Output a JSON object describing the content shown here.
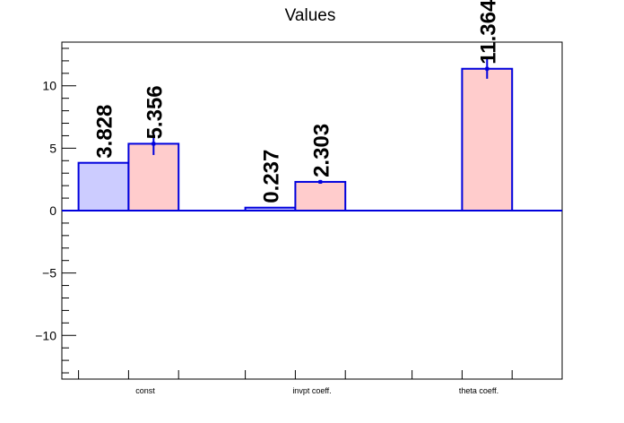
{
  "chart_data": {
    "type": "bar",
    "title": "Values",
    "categories": [
      "const",
      "invpt coeff.",
      "theta coeff."
    ],
    "xlabel": "",
    "ylabel": "",
    "ylim": [
      -13.5,
      13.5
    ],
    "yticks": [
      -10,
      -5,
      0,
      5,
      10
    ],
    "grid": false,
    "series": [
      {
        "values": [
          3.828,
          0.237,
          null
        ],
        "errors": [
          null,
          null,
          null
        ],
        "labels": [
          "3.828",
          "0.237",
          ""
        ],
        "fill": "#ccccff",
        "stroke": "#0000dd"
      },
      {
        "values": [
          5.356,
          2.303,
          11.364
        ],
        "errors": [
          0.9,
          0.15,
          0.8
        ],
        "labels": [
          "5.356",
          "2.303",
          "11.364"
        ],
        "fill": "#ffcccc",
        "stroke": "#0000dd"
      }
    ]
  }
}
